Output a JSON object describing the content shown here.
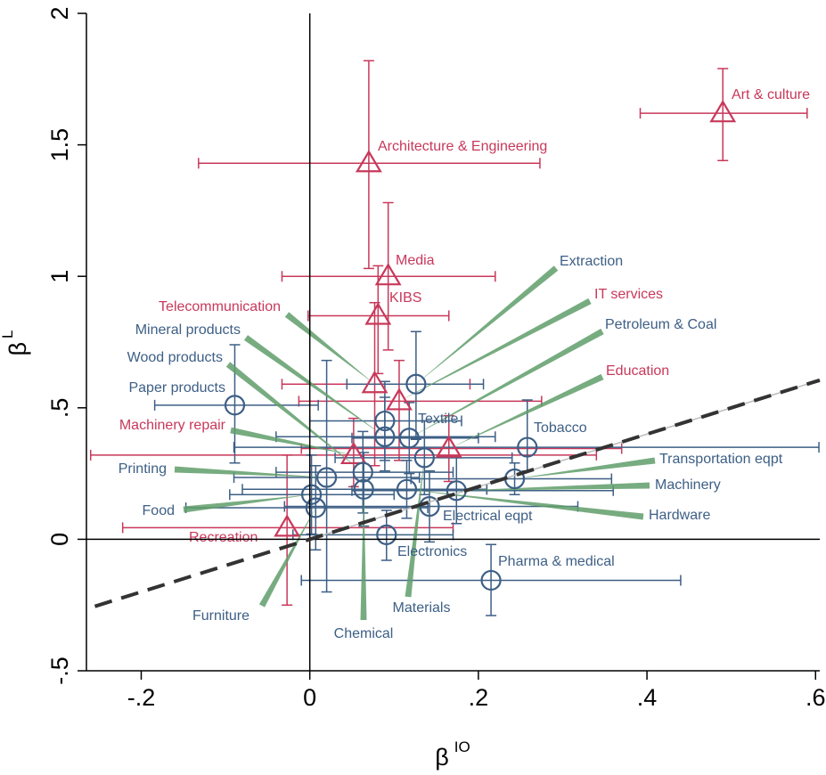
{
  "chart_data": {
    "type": "scatter",
    "xlabel": {
      "text": "β",
      "sup": "IO"
    },
    "ylabel": {
      "text": "β",
      "sup": "L"
    },
    "xlim": [
      -0.265,
      0.605
    ],
    "ylim": [
      -0.5,
      2
    ],
    "xticks": [
      {
        "value": -0.2,
        "label": "-.2"
      },
      0,
      {
        "value": 0.2,
        "label": ".2"
      },
      {
        "value": 0.4,
        "label": ".4"
      },
      {
        "value": 0.6,
        "label": ".6"
      }
    ],
    "yticks": [
      {
        "value": -0.5,
        "label": "-.5"
      },
      0,
      {
        "value": 0.5,
        "label": ".5"
      },
      1,
      1.5,
      2
    ],
    "reference_line": {
      "slope": 1,
      "intercept": 0
    },
    "series": [
      {
        "color": "#c8385a",
        "marker": "triangle",
        "points": [
          {
            "label": "Art & culture",
            "x": 0.49,
            "y": 1.62,
            "x_lo": 0.392,
            "x_hi": 0.59,
            "y_lo": 1.44,
            "y_hi": 1.79
          },
          {
            "label": "Architecture & Engineering",
            "x": 0.07,
            "y": 1.43,
            "x_lo": -0.132,
            "x_hi": 0.273,
            "y_lo": 1.03,
            "y_hi": 1.82
          },
          {
            "label": "Media",
            "x": 0.093,
            "y": 1.0,
            "x_lo": -0.033,
            "x_hi": 0.22,
            "y_lo": 0.72,
            "y_hi": 1.28
          },
          {
            "label": "KIBS",
            "x": 0.081,
            "y": 0.85,
            "x_lo": -0.002,
            "x_hi": 0.165,
            "y_lo": 0.63,
            "y_hi": 1.04
          },
          {
            "label": "Telecommunication",
            "x": 0.077,
            "y": 0.59,
            "x_lo": -0.033,
            "x_hi": 0.19,
            "y_lo": 0.28,
            "y_hi": 0.9
          },
          {
            "label": "IT services",
            "x": 0.106,
            "y": 0.525,
            "x_lo": -0.013,
            "x_hi": 0.275,
            "y_lo": 0.3,
            "y_hi": 0.68
          },
          {
            "label": "Education",
            "x": 0.165,
            "y": 0.345,
            "x_lo": -0.01,
            "x_hi": 0.37,
            "y_lo": 0.22,
            "y_hi": 0.47
          },
          {
            "label": "Machinery repair",
            "x": 0.052,
            "y": 0.32,
            "x_lo": -0.26,
            "x_hi": 0.34,
            "y_lo": 0.2,
            "y_hi": 0.46
          },
          {
            "label": "Recreation",
            "x": -0.027,
            "y": 0.044,
            "x_lo": -0.222,
            "x_hi": 0.17,
            "y_lo": -0.25,
            "y_hi": 0.32
          }
        ]
      },
      {
        "color": "#3d5f85",
        "marker": "circle",
        "points": [
          {
            "label": "Paper products",
            "x": -0.089,
            "y": 0.51,
            "x_lo": -0.184,
            "x_hi": 0.01,
            "y_lo": 0.29,
            "y_hi": 0.74
          },
          {
            "label": "Extraction",
            "x": 0.126,
            "y": 0.59,
            "x_lo": 0.044,
            "x_hi": 0.206,
            "y_lo": 0.38,
            "y_hi": 0.79
          },
          {
            "label": "Textile",
            "x": 0.089,
            "y": 0.45,
            "x_lo": 0.0,
            "x_hi": 0.18,
            "y_lo": 0.3,
            "y_hi": 0.6
          },
          {
            "label": "Mineral products",
            "x": 0.089,
            "y": 0.39,
            "x_lo": -0.04,
            "x_hi": 0.22,
            "y_lo": 0.26,
            "y_hi": 0.54
          },
          {
            "label": "Petroleum & Coal",
            "x": 0.118,
            "y": 0.385,
            "x_lo": 0.05,
            "x_hi": 0.2,
            "y_lo": 0.25,
            "y_hi": 0.52
          },
          {
            "label": "Materials",
            "x": 0.136,
            "y": 0.31,
            "x_lo": 0.03,
            "x_hi": 0.24,
            "y_lo": 0.17,
            "y_hi": 0.45
          },
          {
            "label": "Tobacco",
            "x": 0.258,
            "y": 0.35,
            "x_lo": -0.09,
            "x_hi": 0.604,
            "y_lo": 0.26,
            "y_hi": 0.53
          },
          {
            "label": "Printing",
            "x": 0.02,
            "y": 0.235,
            "x_lo": -0.09,
            "x_hi": 0.13,
            "y_lo": -0.2,
            "y_hi": 0.68
          },
          {
            "label": "Wood products",
            "x": 0.063,
            "y": 0.255,
            "x_lo": -0.04,
            "x_hi": 0.17,
            "y_lo": 0.1,
            "y_hi": 0.41
          },
          {
            "label": "Food",
            "x": 0.002,
            "y": 0.17,
            "x_lo": -0.095,
            "x_hi": 0.1,
            "y_lo": 0.02,
            "y_hi": 0.32
          },
          {
            "label": "Furniture",
            "x": 0.007,
            "y": 0.12,
            "x_lo": -0.147,
            "x_hi": 0.14,
            "y_lo": -0.04,
            "y_hi": 0.28
          },
          {
            "label": "Chemical",
            "x": 0.064,
            "y": 0.19,
            "x_lo": -0.08,
            "x_hi": 0.21,
            "y_lo": 0.05,
            "y_hi": 0.33
          },
          {
            "label": "Hardware",
            "x": 0.115,
            "y": 0.19,
            "x_lo": 0.02,
            "x_hi": 0.21,
            "y_lo": 0.08,
            "y_hi": 0.3
          },
          {
            "label": "Electrical eqpt",
            "x": 0.142,
            "y": 0.125,
            "x_lo": -0.03,
            "x_hi": 0.318,
            "y_lo": -0.01,
            "y_hi": 0.26
          },
          {
            "label": "Machinery",
            "x": 0.174,
            "y": 0.185,
            "x_lo": 0.05,
            "x_hi": 0.36,
            "y_lo": 0.06,
            "y_hi": 0.31
          },
          {
            "label": "Transportation eqpt",
            "x": 0.243,
            "y": 0.23,
            "x_lo": 0.12,
            "x_hi": 0.358,
            "y_lo": 0.17,
            "y_hi": 0.29
          },
          {
            "label": "Electronics",
            "x": 0.091,
            "y": 0.017,
            "x_lo": -0.02,
            "x_hi": 0.17,
            "y_lo": -0.08,
            "y_hi": 0.11
          },
          {
            "label": "Pharma & medical",
            "x": 0.215,
            "y": -0.156,
            "x_lo": -0.01,
            "x_hi": 0.44,
            "y_lo": -0.29,
            "y_hi": -0.02
          }
        ]
      }
    ]
  }
}
